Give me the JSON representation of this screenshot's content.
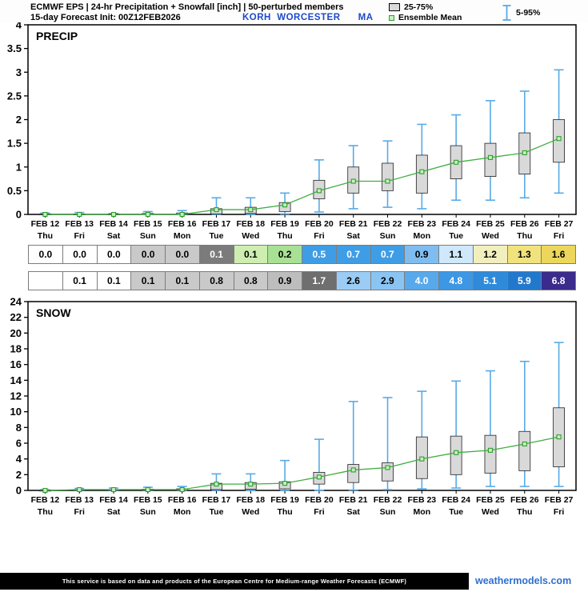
{
  "header": {
    "title_line1": "ECMWF EPS | 24-hr Precipitation + Snowfall [inch] | 50-perturbed members",
    "title_line2": "15-day Forecast Init: 00Z12FEB2026",
    "station": "KORH  WORCESTER      MA",
    "legend": {
      "box_label": "25-75%",
      "mean_label": "Ensemble Mean",
      "whisker_label": "5-95%"
    }
  },
  "days": [
    "Thu",
    "Fri",
    "Sat",
    "Sun",
    "Mon",
    "Tue",
    "Wed",
    "Thu",
    "Fri",
    "Sat",
    "Sun",
    "Mon",
    "Tue",
    "Wed",
    "Thu",
    "Fri"
  ],
  "colors": {
    "whisker": "#58aae6",
    "box_fill": "#d9d9d9",
    "box_stroke": "#222222",
    "mean_line": "#3fae3f",
    "mean_fill": "#c8f0be",
    "mean_stroke": "#2f9e2f",
    "station_blue": "#1d49cc",
    "link_blue": "#2e6fd0"
  },
  "chart_data": [
    {
      "type": "boxplot",
      "panel_label": "PRECIP",
      "title": "ECMWF EPS 24-hr Precipitation accumulation [inch]",
      "ylabel": "",
      "ylim": [
        0,
        4
      ],
      "ytick": 0.5,
      "grid": false,
      "legend_position": "top-right",
      "categories": [
        "FEB 12",
        "FEB 13",
        "FEB 14",
        "FEB 15",
        "FEB 16",
        "FEB 17",
        "FEB 18",
        "FEB 19",
        "FEB 20",
        "FEB 21",
        "FEB 22",
        "FEB 23",
        "FEB 24",
        "FEB 25",
        "FEB 26",
        "FEB 27"
      ],
      "box_data": [
        [
          0,
          0,
          0.01,
          0.03
        ],
        [
          0,
          0,
          0.01,
          0.04
        ],
        [
          0,
          0,
          0.01,
          0.02
        ],
        [
          0,
          0,
          0.02,
          0.06
        ],
        [
          0,
          0,
          0.03,
          0.08
        ],
        [
          0,
          0.01,
          0.12,
          0.35
        ],
        [
          0,
          0.02,
          0.15,
          0.35
        ],
        [
          0.01,
          0.06,
          0.25,
          0.45
        ],
        [
          0.05,
          0.33,
          0.72,
          1.15
        ],
        [
          0.12,
          0.45,
          1.0,
          1.45
        ],
        [
          0.15,
          0.5,
          1.08,
          1.55
        ],
        [
          0.12,
          0.45,
          1.25,
          1.9
        ],
        [
          0.3,
          0.75,
          1.45,
          2.1
        ],
        [
          0.3,
          0.8,
          1.5,
          2.4
        ],
        [
          0.35,
          0.85,
          1.72,
          2.6
        ],
        [
          0.45,
          1.1,
          2.0,
          3.05
        ]
      ],
      "mean": [
        0,
        0,
        0,
        0,
        0,
        0.1,
        0.1,
        0.2,
        0.5,
        0.7,
        0.7,
        0.9,
        1.1,
        1.2,
        1.3,
        1.6
      ]
    },
    {
      "type": "boxplot",
      "panel_label": "SNOW",
      "title": "ECMWF EPS Snowfall accumulation [inch]",
      "ylabel": "",
      "ylim": [
        0,
        24
      ],
      "ytick": 2,
      "grid": false,
      "legend_position": "top-right",
      "categories": [
        "FEB 12",
        "FEB 13",
        "FEB 14",
        "FEB 15",
        "FEB 16",
        "FEB 17",
        "FEB 18",
        "FEB 19",
        "FEB 20",
        "FEB 21",
        "FEB 22",
        "FEB 23",
        "FEB 24",
        "FEB 25",
        "FEB 26",
        "FEB 27"
      ],
      "box_data": [
        [
          0,
          0,
          0.02,
          0.1
        ],
        [
          0,
          0,
          0.1,
          0.25
        ],
        [
          0,
          0,
          0.1,
          0.3
        ],
        [
          0,
          0,
          0.15,
          0.4
        ],
        [
          0,
          0,
          0.2,
          0.5
        ],
        [
          0,
          0.1,
          0.9,
          2.1
        ],
        [
          0,
          0.15,
          1.0,
          2.1
        ],
        [
          0,
          0.2,
          1.1,
          3.8
        ],
        [
          0,
          0.8,
          2.3,
          6.5
        ],
        [
          0.05,
          1.0,
          3.3,
          11.3
        ],
        [
          0.1,
          1.2,
          3.5,
          11.8
        ],
        [
          0.2,
          1.5,
          6.8,
          12.6
        ],
        [
          0.3,
          2.0,
          6.9,
          13.9
        ],
        [
          0.5,
          2.2,
          7.0,
          15.2
        ],
        [
          0.5,
          2.5,
          7.5,
          16.4
        ],
        [
          0.5,
          3.0,
          10.5,
          18.8
        ]
      ],
      "mean": [
        0,
        0.1,
        0.1,
        0.1,
        0.1,
        0.8,
        0.8,
        0.9,
        1.7,
        2.6,
        2.9,
        4.0,
        4.8,
        5.1,
        5.9,
        6.8
      ]
    }
  ],
  "table": {
    "rows": [
      {
        "name": "precip-ensemble-mean-row",
        "cells": [
          {
            "v": "0.0",
            "bg": "#ffffff",
            "fg": "#000000"
          },
          {
            "v": "0.0",
            "bg": "#ffffff",
            "fg": "#000000"
          },
          {
            "v": "0.0",
            "bg": "#ffffff",
            "fg": "#000000"
          },
          {
            "v": "0.0",
            "bg": "#c9c9c9",
            "fg": "#000000"
          },
          {
            "v": "0.0",
            "bg": "#c9c9c9",
            "fg": "#000000"
          },
          {
            "v": "0.1",
            "bg": "#7b7b7b",
            "fg": "#ffffff"
          },
          {
            "v": "0.1",
            "bg": "#cdeeb0",
            "fg": "#000000"
          },
          {
            "v": "0.2",
            "bg": "#a8e094",
            "fg": "#000000"
          },
          {
            "v": "0.5",
            "bg": "#3f9de6",
            "fg": "#ffffff"
          },
          {
            "v": "0.7",
            "bg": "#3f9de6",
            "fg": "#ffffff"
          },
          {
            "v": "0.7",
            "bg": "#3f9de6",
            "fg": "#ffffff"
          },
          {
            "v": "0.9",
            "bg": "#7fbdf0",
            "fg": "#000000"
          },
          {
            "v": "1.1",
            "bg": "#cfe8fb",
            "fg": "#000000"
          },
          {
            "v": "1.2",
            "bg": "#f2efbe",
            "fg": "#000000"
          },
          {
            "v": "1.3",
            "bg": "#f0e37c",
            "fg": "#000000"
          },
          {
            "v": "1.6",
            "bg": "#ecd75c",
            "fg": "#000000"
          }
        ]
      },
      {
        "name": "snow-ensemble-mean-row",
        "cells": [
          {
            "v": "",
            "bg": "#ffffff",
            "fg": "#000000"
          },
          {
            "v": "0.1",
            "bg": "#ffffff",
            "fg": "#000000"
          },
          {
            "v": "0.1",
            "bg": "#ffffff",
            "fg": "#000000"
          },
          {
            "v": "0.1",
            "bg": "#c9c9c9",
            "fg": "#000000"
          },
          {
            "v": "0.1",
            "bg": "#c9c9c9",
            "fg": "#000000"
          },
          {
            "v": "0.8",
            "bg": "#c9c9c9",
            "fg": "#000000"
          },
          {
            "v": "0.8",
            "bg": "#c9c9c9",
            "fg": "#000000"
          },
          {
            "v": "0.9",
            "bg": "#bdbdbd",
            "fg": "#000000"
          },
          {
            "v": "1.7",
            "bg": "#6f6f6f",
            "fg": "#ffffff"
          },
          {
            "v": "2.6",
            "bg": "#9bccf5",
            "fg": "#000000"
          },
          {
            "v": "2.9",
            "bg": "#8ac4f3",
            "fg": "#000000"
          },
          {
            "v": "4.0",
            "bg": "#57a9ec",
            "fg": "#ffffff"
          },
          {
            "v": "4.8",
            "bg": "#3d97e4",
            "fg": "#ffffff"
          },
          {
            "v": "5.1",
            "bg": "#2f8ada",
            "fg": "#ffffff"
          },
          {
            "v": "5.9",
            "bg": "#2278cc",
            "fg": "#ffffff"
          },
          {
            "v": "6.8",
            "bg": "#3a2b8c",
            "fg": "#ffffff"
          }
        ]
      }
    ]
  },
  "footer": {
    "disclaimer": "This service is based on data and products of the European Centre for Medium-range Weather Forecasts (ECMWF)",
    "site": "weathermodels.com"
  }
}
